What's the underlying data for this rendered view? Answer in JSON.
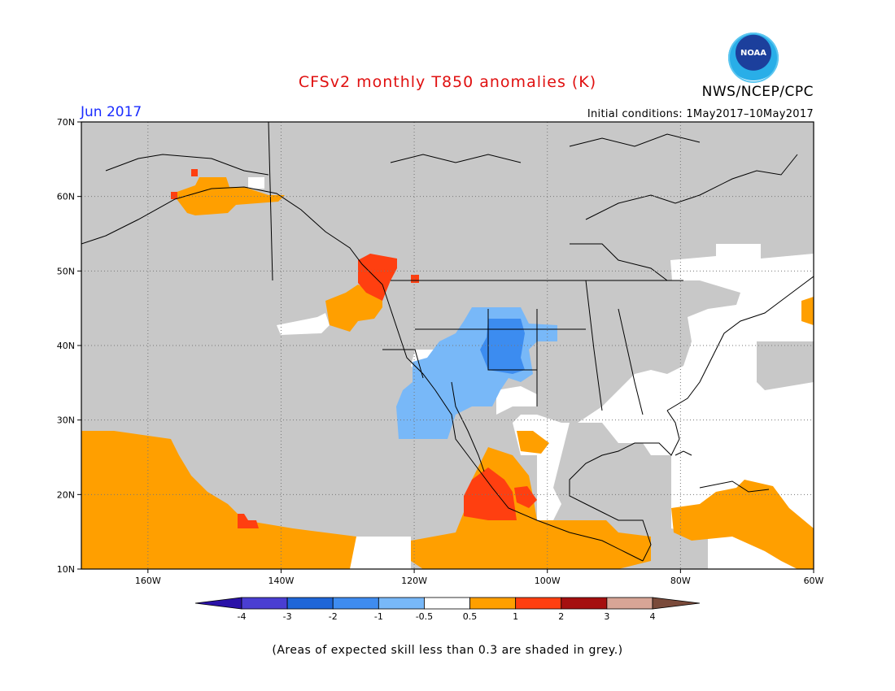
{
  "header": {
    "title": "CFSv2 monthly T850 anomalies (K)",
    "credit": "NWS/NCEP/CPC",
    "month": "Jun 2017",
    "initial_conditions": "Initial conditions: 1May2017–10May2017",
    "logo_text": "NOAA"
  },
  "map": {
    "lat_range": [
      10,
      70
    ],
    "lon_range": [
      -170,
      -60
    ],
    "lat_ticks": [
      {
        "value": 70,
        "label": "70N"
      },
      {
        "value": 60,
        "label": "60N"
      },
      {
        "value": 50,
        "label": "50N"
      },
      {
        "value": 40,
        "label": "40N"
      },
      {
        "value": 30,
        "label": "30N"
      },
      {
        "value": 20,
        "label": "20N"
      },
      {
        "value": 10,
        "label": "10N"
      }
    ],
    "lon_ticks": [
      {
        "value": -160,
        "label": "160W"
      },
      {
        "value": -140,
        "label": "140W"
      },
      {
        "value": -120,
        "label": "120W"
      },
      {
        "value": -100,
        "label": "100W"
      },
      {
        "value": -80,
        "label": "80W"
      },
      {
        "value": -60,
        "label": "60W"
      }
    ],
    "colors": {
      "grey_low_skill": "#c8c8c8",
      "neutral": "#ffffff",
      "warm_0_5_1": "#ff9f00",
      "warm_1_2": "#ff3f10",
      "cool_minus0_5_minus1": "#78b8f8",
      "cool_minus1_minus2": "#3c8cf0",
      "coastline": "#000000"
    }
  },
  "colorbar": {
    "colors": [
      "#2a12a8",
      "#4a3ed2",
      "#1f66d8",
      "#3f8cf0",
      "#78b8f8",
      "#ffffff",
      "#ff9f00",
      "#ff3f10",
      "#a50f0f",
      "#d7a596",
      "#7a4a3a"
    ],
    "labels": [
      "-4",
      "-3",
      "-2",
      "-1",
      "-0.5",
      "0.5",
      "1",
      "2",
      "3",
      "4"
    ]
  },
  "footnote": "(Areas of expected skill less than 0.3 are shaded in grey.)"
}
